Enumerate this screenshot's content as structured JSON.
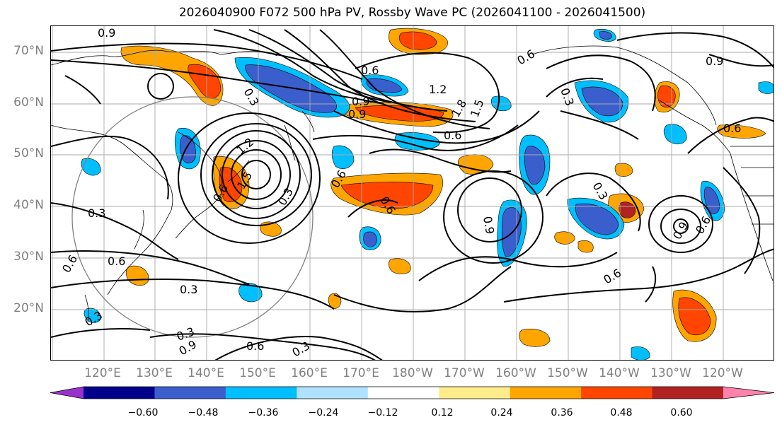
{
  "title": "2026040900 F072 500 hPa PV, Rossby Wave PC (2026041100 - 2026041500)",
  "lat_ticks": [
    "70°N",
    "60°N",
    "50°N",
    "40°N",
    "30°N",
    "20°N"
  ],
  "lon_ticks": [
    "120°E",
    "130°E",
    "140°E",
    "150°E",
    "160°E",
    "170°E",
    "180°W",
    "170°W",
    "160°W",
    "150°W",
    "140°W",
    "130°W",
    "120°W"
  ],
  "colorbar": {
    "colors": [
      "#9932cc",
      "#00008b",
      "#3a5fcd",
      "#00bfff",
      "#b0e2ff",
      "#ffffff",
      "#ffec8b",
      "#ffa500",
      "#ff4500",
      "#b22222",
      "#ff82ab"
    ],
    "labels": [
      "−0.60",
      "−0.48",
      "−0.36",
      "−0.24",
      "−0.12",
      "0.12",
      "0.24",
      "0.36",
      "0.48",
      "0.60"
    ]
  },
  "contour_labels": [
    "0.9",
    "0.3",
    "0.6",
    "1.2",
    "1.8",
    "1.5",
    "0.9",
    "0.6",
    "0.3",
    "1.2",
    "1.5",
    "0.6",
    "0.3",
    "0.6",
    "0.3",
    "0.6",
    "0.3",
    "0.9",
    "0.6",
    "0.9",
    "0.3",
    "0.9",
    "0.9",
    "0.6",
    "0.6",
    "0.6",
    "0.3",
    "0.6",
    "0.6",
    "0.3",
    "0.9",
    "0.6",
    "0.3"
  ]
}
